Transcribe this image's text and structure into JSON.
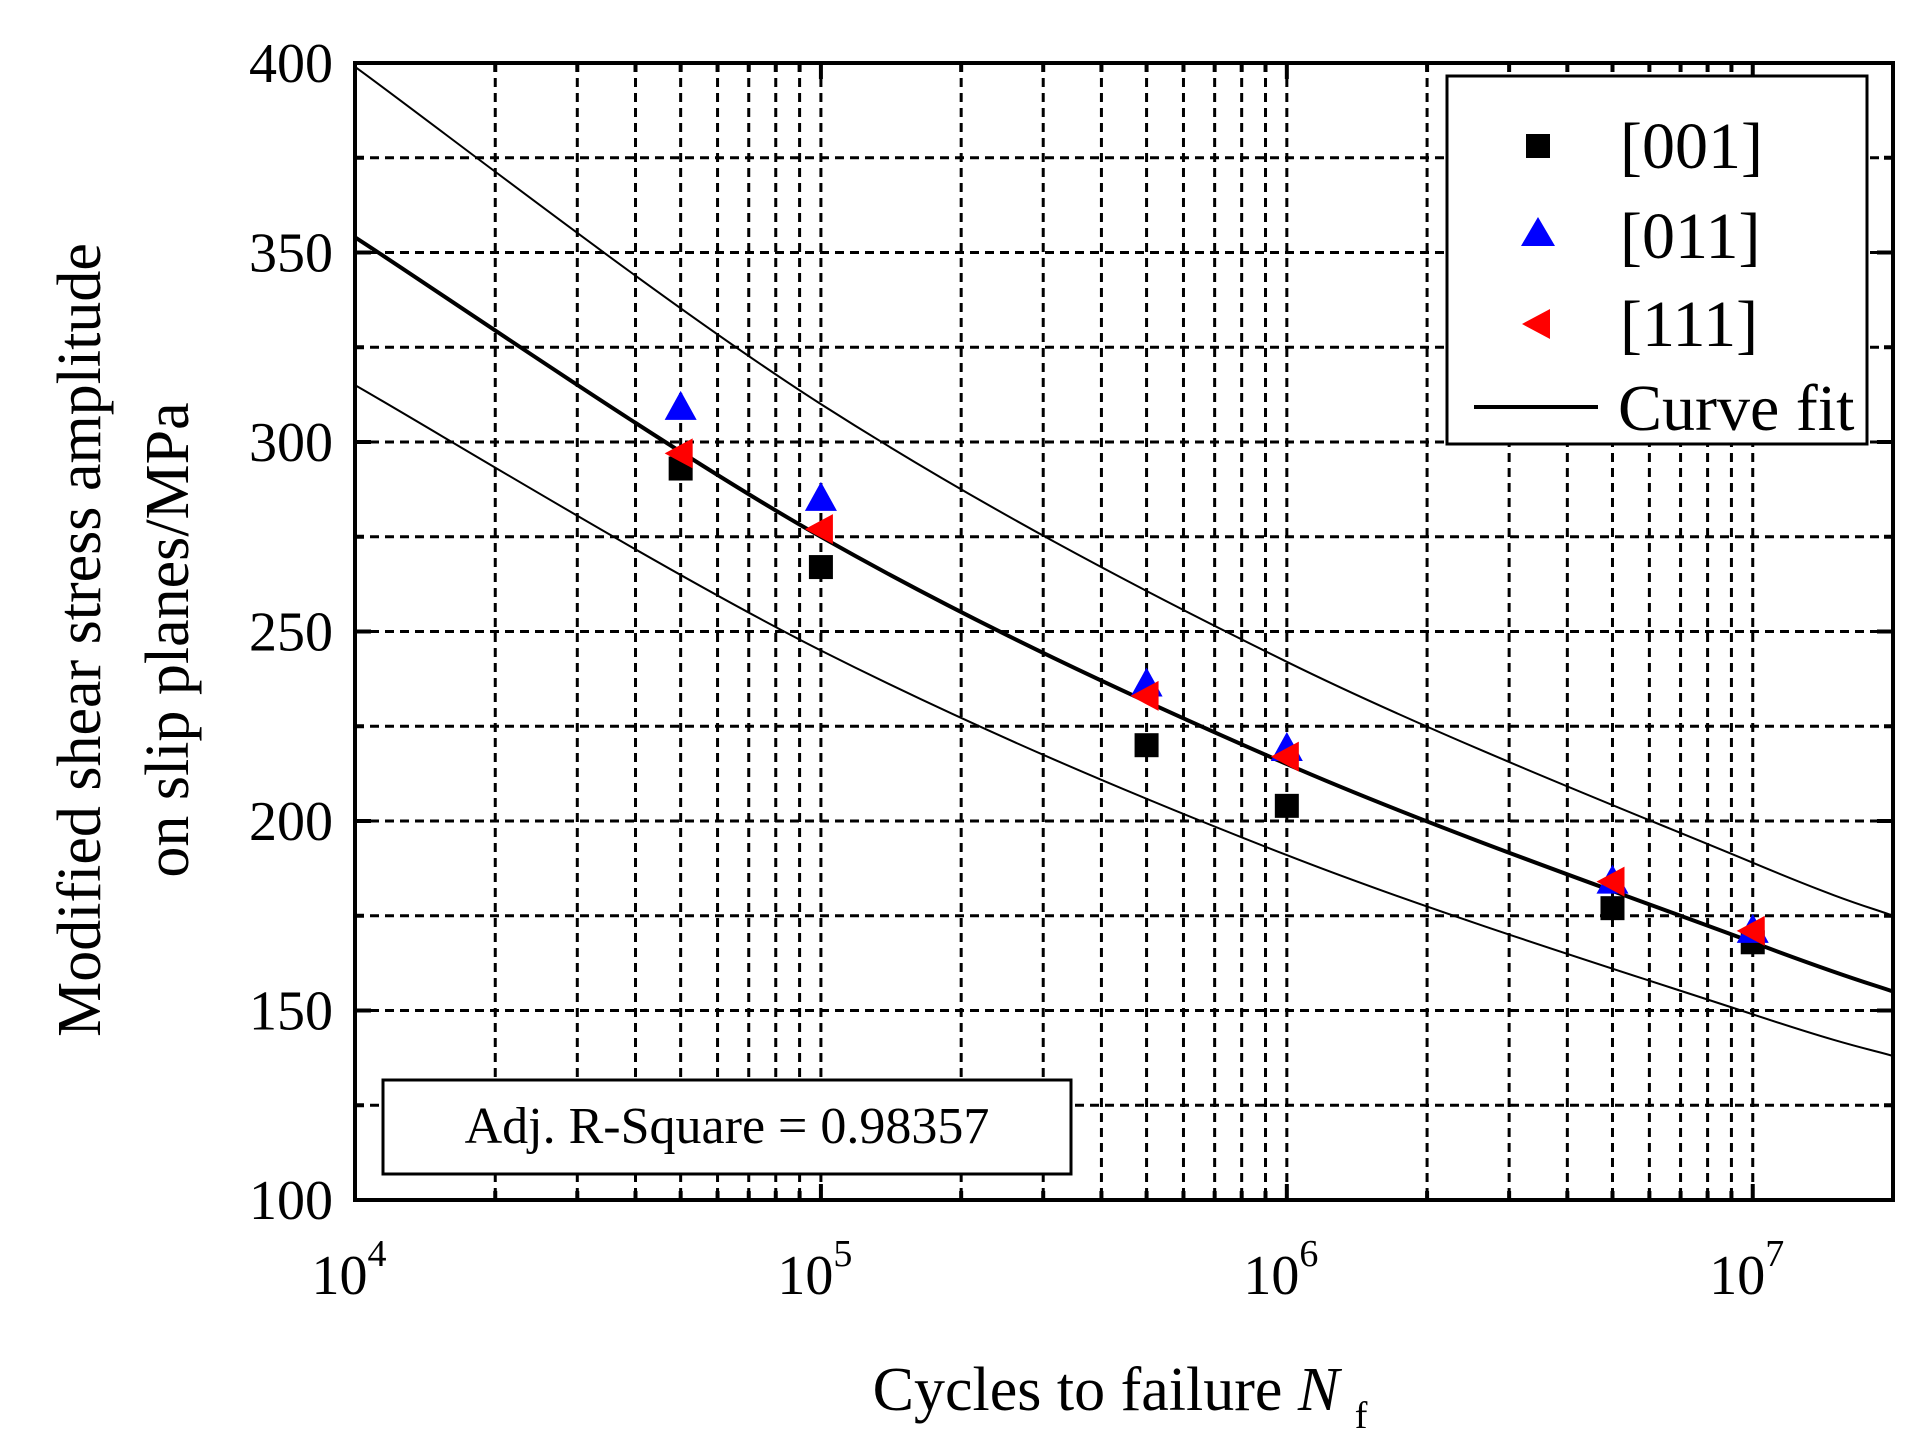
{
  "chart_data": {
    "type": "scatter",
    "title": "",
    "xlabel": "Cycles to failure",
    "xlabel_symbol": "N",
    "xlabel_subscript": "f",
    "ylabel_lines": [
      "Modified shear stress amplitude",
      "on slip planes/MPa"
    ],
    "x_scale": "log",
    "xlim": [
      10000,
      20000000
    ],
    "ylim": [
      100,
      400
    ],
    "x_tick_base": "10",
    "x_ticks": [
      {
        "value": 10000,
        "exp": "4"
      },
      {
        "value": 100000,
        "exp": "5"
      },
      {
        "value": 1000000,
        "exp": "6"
      },
      {
        "value": 10000000,
        "exp": "7"
      }
    ],
    "y_ticks": [
      100,
      150,
      200,
      250,
      300,
      350,
      400
    ],
    "y_ticks_display": [
      "100",
      "150",
      "200",
      "250",
      "300",
      "350",
      "400"
    ],
    "y_minor_grid": [
      125,
      175,
      225,
      275,
      325,
      375
    ],
    "grid": true,
    "legend_position": "top-right",
    "series": [
      {
        "name": "[001]",
        "marker": "square",
        "color": "#000000",
        "points": [
          [
            50000,
            293
          ],
          [
            100000,
            267
          ],
          [
            500000,
            220
          ],
          [
            1000000,
            204
          ],
          [
            5000000,
            177
          ],
          [
            10000000,
            168
          ]
        ]
      },
      {
        "name": "[011]",
        "marker": "triangle-up",
        "color": "#0000ff",
        "points": [
          [
            50000,
            309
          ],
          [
            100000,
            285
          ],
          [
            500000,
            236
          ],
          [
            1000000,
            219
          ],
          [
            5000000,
            184
          ],
          [
            10000000,
            171
          ]
        ]
      },
      {
        "name": "[111]",
        "marker": "triangle-left",
        "color": "#ff0000",
        "points": [
          [
            50000,
            297
          ],
          [
            100000,
            277
          ],
          [
            500000,
            233
          ],
          [
            1000000,
            217
          ],
          [
            5000000,
            184
          ],
          [
            10000000,
            171
          ]
        ]
      }
    ],
    "curves": [
      {
        "name": "Curve fit",
        "role": "fit",
        "stroke_width": 4,
        "points": [
          [
            10000,
            354
          ],
          [
            100000,
            275
          ],
          [
            1000000,
            215
          ],
          [
            10000000,
            168
          ],
          [
            20000000,
            155
          ]
        ]
      },
      {
        "name": "upper-bound",
        "role": "bound",
        "stroke_width": 2,
        "points": [
          [
            10000,
            399
          ],
          [
            100000,
            310
          ],
          [
            1000000,
            242
          ],
          [
            10000000,
            189
          ],
          [
            20000000,
            175
          ]
        ]
      },
      {
        "name": "lower-bound",
        "role": "bound",
        "stroke_width": 2,
        "points": [
          [
            10000,
            315
          ],
          [
            100000,
            245
          ],
          [
            1000000,
            191
          ],
          [
            10000000,
            149
          ],
          [
            20000000,
            138
          ]
        ]
      }
    ],
    "legend_entries": [
      "[001]",
      "[011]",
      "[111]",
      "Curve fit"
    ],
    "annotation": "Adj. R-Square = 0.98357"
  }
}
